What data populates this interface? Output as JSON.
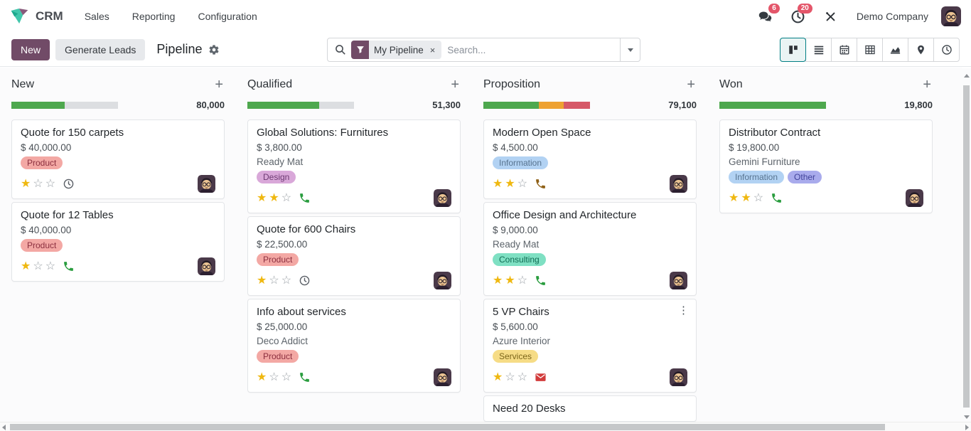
{
  "nav": {
    "app_name": "CRM",
    "menus": [
      "Sales",
      "Reporting",
      "Configuration"
    ],
    "messages_badge": "6",
    "activities_badge": "20",
    "company_name": "Demo Company"
  },
  "control_panel": {
    "new_button": "New",
    "generate_leads_button": "Generate Leads",
    "title": "Pipeline",
    "search": {
      "facet_label": "My Pipeline",
      "placeholder": "Search..."
    }
  },
  "view_switcher": [
    "kanban",
    "list",
    "calendar",
    "pivot",
    "graph",
    "map",
    "activity"
  ],
  "palette": {
    "brand": "#714B67",
    "badge": "#e4566a",
    "view_active_border": "#017e84",
    "success": "#4ea84e",
    "warning": "#eea231",
    "danger": "#d65968",
    "track": "#dcdee1",
    "star_on": "#efb810",
    "star_off": "#9aa0a6",
    "activity": {
      "phone": "#2a9d3f",
      "phone_overdue": "#8f6117",
      "email": "#d23c3c",
      "clock": "#5a5f66"
    }
  },
  "board": {
    "columns": [
      {
        "name": "New",
        "amount": "80,000",
        "progress": [
          {
            "kind": "success",
            "pct": 50
          }
        ],
        "cards": [
          {
            "title": "Quote for 150 carpets",
            "price": "$ 40,000.00",
            "tags": [
              {
                "label": "Product",
                "bg": "#f3a8a4",
                "fg": "#8c2f3f"
              }
            ],
            "stars": 1,
            "activity": "clock"
          },
          {
            "title": "Quote for 12 Tables",
            "price": "$ 40,000.00",
            "tags": [
              {
                "label": "Product",
                "bg": "#f3a8a4",
                "fg": "#8c2f3f"
              }
            ],
            "stars": 1,
            "activity": "phone"
          }
        ]
      },
      {
        "name": "Qualified",
        "amount": "51,300",
        "progress": [
          {
            "kind": "success",
            "pct": 67
          }
        ],
        "cards": [
          {
            "title": "Global Solutions: Furnitures",
            "price": "$ 3,800.00",
            "partner": "Ready Mat",
            "tags": [
              {
                "label": "Design",
                "bg": "#d9a8d9",
                "fg": "#6d3a72"
              }
            ],
            "stars": 2,
            "activity": "phone"
          },
          {
            "title": "Quote for 600 Chairs",
            "price": "$ 22,500.00",
            "tags": [
              {
                "label": "Product",
                "bg": "#f3a8a4",
                "fg": "#8c2f3f"
              }
            ],
            "stars": 1,
            "activity": "clock"
          },
          {
            "title": "Info about services",
            "price": "$ 25,000.00",
            "partner": "Deco Addict",
            "tags": [
              {
                "label": "Product",
                "bg": "#f3a8a4",
                "fg": "#8c2f3f"
              }
            ],
            "stars": 1,
            "activity": "phone"
          }
        ]
      },
      {
        "name": "Proposition",
        "amount": "79,100",
        "progress": [
          {
            "kind": "success",
            "pct": 52
          },
          {
            "kind": "warning",
            "pct": 23
          },
          {
            "kind": "danger",
            "pct": 25
          }
        ],
        "cards": [
          {
            "title": "Modern Open Space",
            "price": "$ 4,500.00",
            "tags": [
              {
                "label": "Information",
                "bg": "#b2d2f3",
                "fg": "#57738f"
              }
            ],
            "stars": 2,
            "activity": "phone_overdue"
          },
          {
            "title": "Office Design and Architecture",
            "price": "$ 9,000.00",
            "partner": "Ready Mat",
            "tags": [
              {
                "label": "Consulting",
                "bg": "#7fe0c3",
                "fg": "#106c54"
              }
            ],
            "stars": 2,
            "activity": "phone"
          },
          {
            "title": "5 VP Chairs",
            "price": "$ 5,600.00",
            "partner": "Azure Interior",
            "tags": [
              {
                "label": "Services",
                "bg": "#f6dc86",
                "fg": "#7c661a"
              }
            ],
            "stars": 1,
            "activity": "email",
            "menu": true
          },
          {
            "title": "Need 20 Desks",
            "partial": true
          }
        ]
      },
      {
        "name": "Won",
        "amount": "19,800",
        "progress": [
          {
            "kind": "success",
            "pct": 100
          }
        ],
        "cards": [
          {
            "title": "Distributor Contract",
            "price": "$ 19,800.00",
            "partner": "Gemini Furniture",
            "tags": [
              {
                "label": "Information",
                "bg": "#b2d2f3",
                "fg": "#57738f"
              },
              {
                "label": "Other",
                "bg": "#a9abec",
                "fg": "#42439a"
              }
            ],
            "stars": 2,
            "activity": "phone"
          }
        ]
      }
    ]
  }
}
